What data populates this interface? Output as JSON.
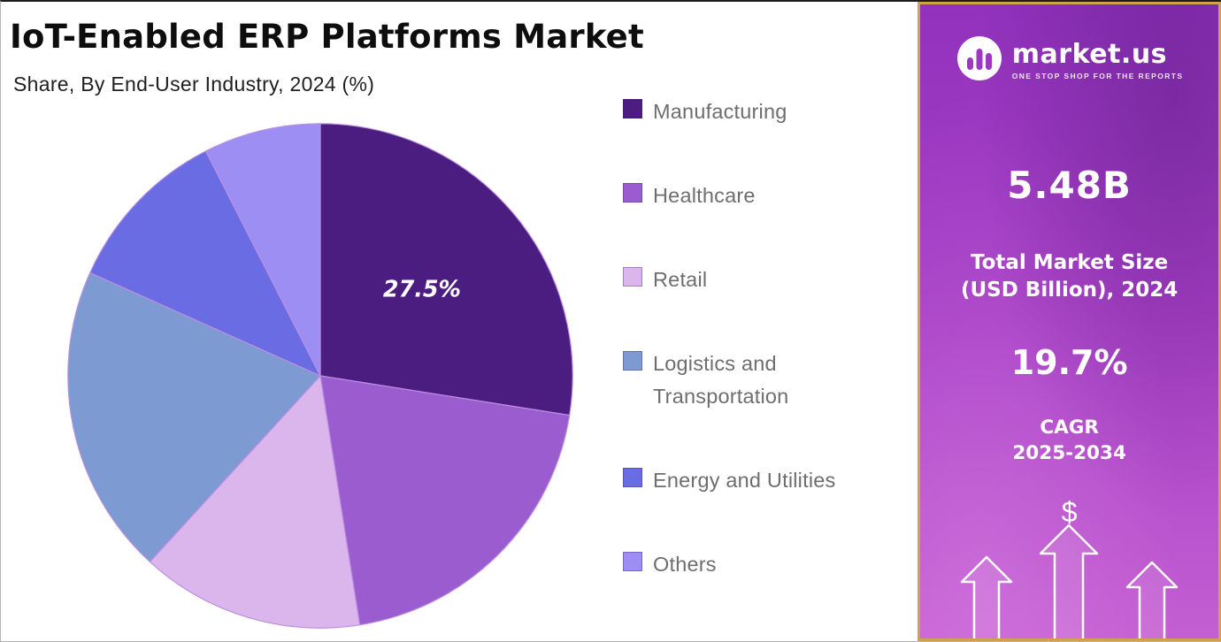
{
  "header": {
    "title": "IoT-Enabled ERP Platforms Market",
    "subtitle": "Share, By End-User Industry, 2024 (%)"
  },
  "chart_data": {
    "type": "pie",
    "title": "IoT-Enabled ERP Platforms Market",
    "subtitle": "Share, By End-User Industry, 2024 (%)",
    "unit": "%",
    "start_angle_deg": 0,
    "direction": "clockwise",
    "legend_position": "right",
    "slices": [
      {
        "label": "Manufacturing",
        "value": 27.5,
        "color": "#4c1d80",
        "data_label": "27.5%"
      },
      {
        "label": "Healthcare",
        "value": 20.0,
        "color": "#9b5ccf",
        "data_label": ""
      },
      {
        "label": "Retail",
        "value": 14.3,
        "color": "#dab6ed",
        "data_label": ""
      },
      {
        "label": "Logistics and Transportation",
        "value": 19.9,
        "color": "#7e9ad2",
        "data_label": ""
      },
      {
        "label": "Energy and Utilities",
        "value": 10.8,
        "color": "#6a6ce3",
        "data_label": ""
      },
      {
        "label": "Others",
        "value": 7.5,
        "color": "#9c8ef2",
        "data_label": ""
      }
    ]
  },
  "sidebar": {
    "brand": {
      "name": "market.us",
      "tagline": "ONE STOP SHOP FOR THE REPORTS",
      "logo_icon": "market-us-bars-logo"
    },
    "market_size_value": "5.48B",
    "market_size_label_line1": "Total Market Size",
    "market_size_label_line2": "(USD Billion), 2024",
    "cagr_value": "19.7%",
    "cagr_label_line1": "CAGR",
    "cagr_label_line2": "2025-2034",
    "dollar_symbol": "$",
    "colors": {
      "gradient_top": "#9232bd",
      "gradient_bottom": "#c45ed2",
      "border": "#d2a14b"
    }
  }
}
